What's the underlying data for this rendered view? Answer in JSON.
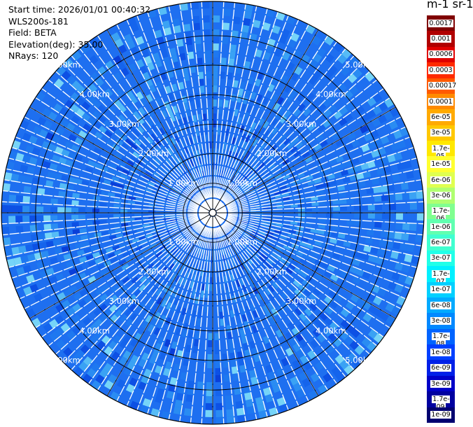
{
  "info": {
    "start_time": "Start time: 2026/01/01 00:40:32",
    "instrument": "WLS200s-181",
    "field": "Field: BETA",
    "elevation": "Elevation(deg): 35.00",
    "nrays": "NRays: 120"
  },
  "unit_label": "m-1 sr-1",
  "range_labels": [
    "1.00km",
    "2.00km",
    "3.00km",
    "4.00km",
    "5.00km"
  ],
  "colorbar": {
    "labels": [
      "0.0017",
      "0.001",
      "0.0006",
      "0.0003",
      "0.00017",
      "0.0001",
      "6e-05",
      "3e-05",
      "1.7e-05",
      "1e-05",
      "6e-06",
      "3e-06",
      "1.7e-06",
      "1e-06",
      "6e-07",
      "3e-07",
      "1.7e-07",
      "1e-07",
      "6e-08",
      "3e-08",
      "1.7e-08",
      "1e-08",
      "6e-09",
      "3e-09",
      "1.7e-09",
      "1e-09"
    ],
    "colors": [
      "#800000",
      "#b00000",
      "#e00000",
      "#ff2a00",
      "#ff5a00",
      "#ff8a00",
      "#ffaa00",
      "#ffc800",
      "#ffe800",
      "#ffff30",
      "#e0ff50",
      "#b0ff70",
      "#80ff90",
      "#60ffb0",
      "#40ffd0",
      "#20ffe8",
      "#00f0ff",
      "#00d0ff",
      "#00aaff",
      "#0088ff",
      "#0064ff",
      "#0040ff",
      "#0020e8",
      "#0000c8",
      "#0000a0",
      "#000070"
    ]
  }
}
